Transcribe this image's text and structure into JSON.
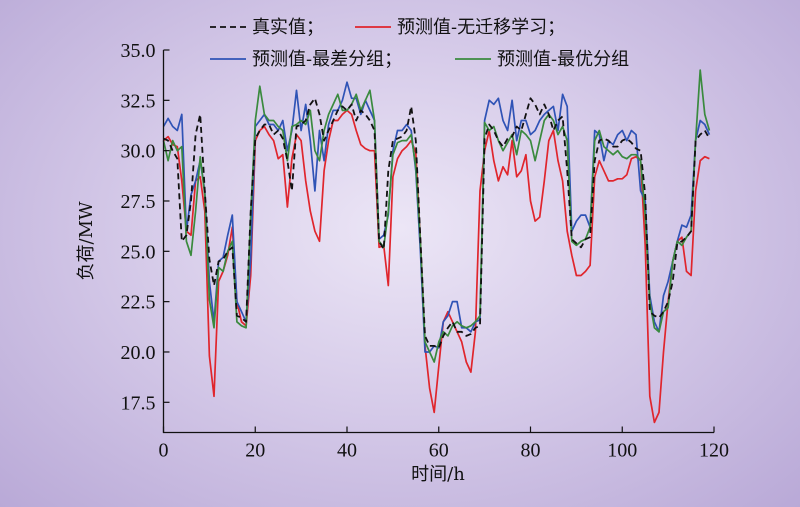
{
  "chart_data": {
    "type": "line",
    "xlabel": "时间/h",
    "ylabel": "负荷/MW",
    "xlim": [
      0,
      120
    ],
    "ylim": [
      16,
      35
    ],
    "xticks": [
      0,
      20,
      40,
      60,
      80,
      100,
      120
    ],
    "yticks": [
      17.5,
      20.0,
      22.5,
      25.0,
      27.5,
      30.0,
      32.5,
      35.0
    ],
    "ytick_labels": [
      "17.5",
      "20.0",
      "22.5",
      "25.0",
      "27.5",
      "30.0",
      "32.5",
      "35.0"
    ],
    "grid": false,
    "legend_position": "top",
    "x": [
      0,
      1,
      2,
      3,
      4,
      5,
      6,
      7,
      8,
      9,
      10,
      11,
      12,
      13,
      14,
      15,
      16,
      17,
      18,
      19,
      20,
      21,
      22,
      23,
      24,
      25,
      26,
      27,
      28,
      29,
      30,
      31,
      32,
      33,
      34,
      35,
      36,
      37,
      38,
      39,
      40,
      41,
      42,
      43,
      44,
      45,
      46,
      47,
      48,
      49,
      50,
      51,
      52,
      53,
      54,
      55,
      56,
      57,
      58,
      59,
      60,
      61,
      62,
      63,
      64,
      65,
      66,
      67,
      68,
      69,
      70,
      71,
      72,
      73,
      74,
      75,
      76,
      77,
      78,
      79,
      80,
      81,
      82,
      83,
      84,
      85,
      86,
      87,
      88,
      89,
      90,
      91,
      92,
      93,
      94,
      95,
      96,
      97,
      98,
      99,
      100,
      101,
      102,
      103,
      104,
      105,
      106,
      107,
      108,
      109,
      110,
      111,
      112,
      113,
      114,
      115,
      116,
      117,
      118,
      119
    ],
    "series": [
      {
        "name": "真实值；",
        "color": "#111111",
        "style": "dashed",
        "values": [
          30.6,
          30.5,
          30.0,
          29.6,
          25.5,
          25.8,
          27.5,
          30.8,
          31.8,
          28.0,
          24.6,
          23.3,
          24.5,
          24.6,
          25.0,
          25.2,
          21.8,
          21.7,
          21.5,
          27.0,
          30.6,
          31.0,
          31.3,
          31.3,
          30.8,
          31.0,
          30.6,
          29.5,
          28.0,
          31.2,
          31.3,
          31.5,
          32.3,
          32.6,
          31.8,
          30.5,
          31.0,
          31.5,
          32.0,
          32.2,
          32.0,
          32.3,
          31.5,
          32.0,
          31.8,
          31.5,
          31.0,
          25.5,
          25.1,
          29.0,
          30.5,
          30.6,
          30.7,
          31.0,
          32.2,
          30.5,
          25.6,
          20.8,
          20.3,
          20.3,
          20.2,
          20.8,
          21.2,
          21.5,
          21.0,
          21.0,
          20.8,
          20.9,
          21.2,
          21.3,
          30.6,
          31.3,
          31.0,
          30.5,
          30.2,
          30.6,
          30.7,
          31.2,
          31.0,
          31.8,
          32.6,
          32.3,
          31.8,
          32.3,
          31.8,
          31.0,
          31.5,
          31.7,
          29.0,
          25.6,
          25.4,
          25.2,
          25.6,
          25.7,
          29.5,
          30.5,
          30.6,
          30.5,
          30.2,
          30.2,
          30.5,
          30.6,
          30.4,
          30.1,
          30.0,
          27.8,
          22.0,
          21.8,
          21.7,
          22.0,
          22.5,
          23.5,
          25.4,
          25.5,
          25.7,
          26.0,
          30.5,
          30.8,
          31.0,
          30.6
        ]
      },
      {
        "name": "预测值-无迁移学习；",
        "color": "#e0252c",
        "style": "solid",
        "values": [
          30.5,
          30.7,
          30.3,
          30.2,
          28.5,
          26.0,
          25.8,
          28.5,
          28.7,
          27.0,
          19.8,
          17.8,
          23.5,
          24.0,
          24.8,
          26.2,
          22.5,
          21.5,
          21.3,
          23.8,
          30.5,
          31.0,
          31.2,
          30.8,
          30.5,
          29.6,
          29.8,
          27.2,
          29.6,
          30.8,
          30.5,
          28.5,
          27.0,
          26.0,
          25.5,
          29.0,
          30.5,
          31.5,
          31.5,
          31.8,
          32.0,
          31.8,
          31.0,
          30.3,
          30.1,
          30.0,
          30.0,
          25.2,
          25.3,
          23.3,
          28.7,
          29.6,
          30.0,
          30.2,
          30.5,
          29.9,
          25.5,
          20.3,
          18.2,
          17.0,
          19.3,
          21.5,
          22.0,
          21.5,
          21.0,
          20.5,
          19.5,
          19.0,
          21.0,
          28.0,
          30.0,
          31.0,
          29.5,
          28.5,
          29.2,
          28.8,
          30.5,
          28.7,
          29.0,
          29.8,
          27.5,
          26.5,
          26.7,
          28.5,
          30.5,
          31.0,
          29.5,
          28.5,
          26.0,
          24.8,
          23.8,
          23.8,
          24.0,
          24.3,
          28.7,
          29.5,
          29.0,
          28.5,
          28.5,
          28.6,
          28.6,
          28.8,
          29.6,
          29.7,
          29.5,
          25.3,
          17.8,
          16.5,
          17.0,
          20.0,
          22.5,
          24.5,
          25.5,
          25.7,
          24.0,
          23.8,
          28.0,
          29.5,
          29.7,
          29.6
        ]
      },
      {
        "name": "预测值-最差分组；",
        "color": "#2f53b6",
        "style": "solid",
        "values": [
          31.2,
          31.6,
          31.2,
          31.0,
          31.8,
          26.0,
          27.8,
          28.5,
          29.5,
          28.0,
          23.5,
          21.5,
          24.5,
          24.7,
          25.8,
          26.8,
          22.5,
          22.0,
          21.5,
          24.6,
          31.2,
          31.5,
          31.8,
          31.3,
          31.3,
          31.0,
          31.5,
          30.0,
          31.0,
          33.0,
          31.0,
          32.3,
          30.5,
          28.0,
          31.0,
          29.5,
          31.3,
          32.0,
          32.0,
          32.5,
          33.4,
          32.6,
          32.6,
          31.8,
          32.5,
          32.0,
          31.5,
          25.6,
          25.8,
          26.8,
          30.0,
          31.0,
          31.0,
          31.3,
          31.0,
          29.0,
          25.0,
          20.0,
          20.0,
          20.3,
          20.2,
          21.5,
          21.8,
          22.5,
          22.5,
          21.2,
          21.2,
          21.0,
          21.5,
          21.6,
          31.5,
          32.5,
          32.3,
          32.6,
          31.5,
          31.0,
          32.5,
          30.5,
          31.5,
          31.5,
          30.8,
          31.0,
          31.5,
          31.8,
          32.0,
          32.2,
          31.0,
          32.8,
          32.2,
          26.0,
          26.5,
          26.8,
          26.8,
          26.2,
          31.0,
          30.8,
          29.5,
          30.5,
          30.3,
          30.8,
          31.0,
          30.5,
          31.0,
          30.8,
          28.0,
          27.5,
          22.8,
          21.5,
          21.0,
          22.8,
          23.5,
          24.5,
          25.5,
          26.3,
          26.2,
          26.8,
          30.5,
          31.5,
          31.3,
          30.8
        ]
      },
      {
        "name": "预测值-最优分组",
        "color": "#3a8a3e",
        "style": "solid",
        "values": [
          30.5,
          29.5,
          30.5,
          30.0,
          30.2,
          25.5,
          24.8,
          27.0,
          29.7,
          27.8,
          22.6,
          21.2,
          24.2,
          24.0,
          25.0,
          25.5,
          21.5,
          21.3,
          21.2,
          26.8,
          31.5,
          33.2,
          31.8,
          31.5,
          31.5,
          31.2,
          31.0,
          29.5,
          31.2,
          31.3,
          31.5,
          31.3,
          32.0,
          30.0,
          29.5,
          31.0,
          31.8,
          32.3,
          32.8,
          32.0,
          32.0,
          32.3,
          32.8,
          32.0,
          32.5,
          33.0,
          31.5,
          25.5,
          25.2,
          27.0,
          29.8,
          30.4,
          30.5,
          30.5,
          30.8,
          29.2,
          25.5,
          20.5,
          20.0,
          19.5,
          20.5,
          21.0,
          20.8,
          21.3,
          21.5,
          21.3,
          21.2,
          21.3,
          21.5,
          21.8,
          31.4,
          31.0,
          31.2,
          30.5,
          30.0,
          30.4,
          30.8,
          29.8,
          31.0,
          30.8,
          30.5,
          29.5,
          30.5,
          31.5,
          31.8,
          31.5,
          30.8,
          31.2,
          30.5,
          25.5,
          25.3,
          25.5,
          25.6,
          26.2,
          30.5,
          31.0,
          30.2,
          30.0,
          29.8,
          30.0,
          29.7,
          29.6,
          29.8,
          29.8,
          29.5,
          26.8,
          22.5,
          21.2,
          21.0,
          22.0,
          22.2,
          24.5,
          25.5,
          25.3,
          25.7,
          26.0,
          30.5,
          34.0,
          31.8,
          31.0
        ]
      }
    ]
  }
}
